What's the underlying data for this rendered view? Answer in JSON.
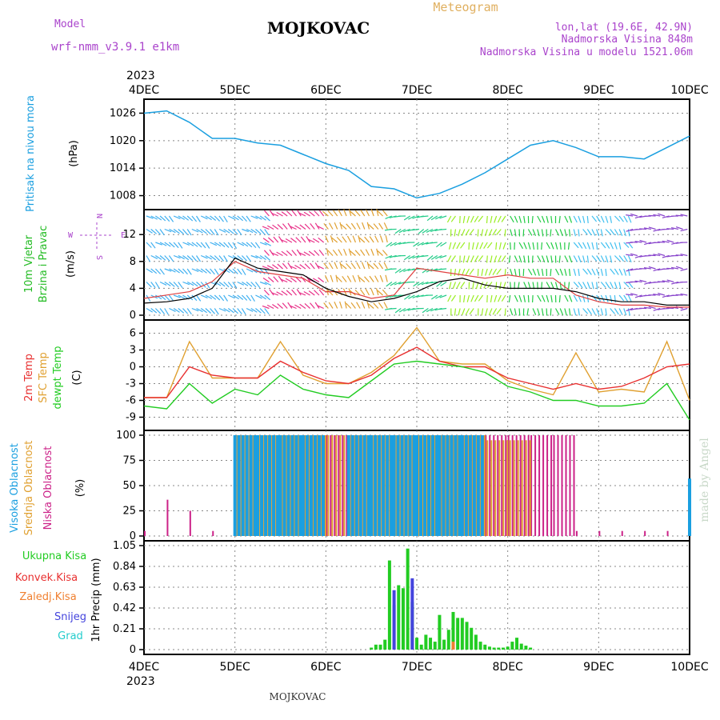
{
  "header": {
    "model_label": "Model",
    "model_name": "wrf-nmm_v3.9.1 e1km",
    "title": "MOJKOVAC",
    "subtitle": "Meteogram",
    "lonlat": "lon,lat (19.6E, 42.9N)",
    "elevation": "Nadmorska Visina 848m",
    "model_elevation": "Nadmorska Visina u modelu 1521.06m",
    "year_top": "2023",
    "year_bottom": "2023",
    "footer_station": "MOJKOVAC",
    "watermark": "made by Angel"
  },
  "colors": {
    "pressure": "#1a9fe0",
    "wind_label": "#22bb22",
    "wind_speed": "#000000",
    "wind_gust": "#e04040",
    "temp_2m": "#e83030",
    "temp_sfc": "#e0a030",
    "temp_dew": "#22cc22",
    "cloud_high": "#1a9fe0",
    "cloud_mid": "#e0a030",
    "cloud_low": "#cc2288",
    "precip_total": "#22cc22",
    "precip_conv": "#e83030",
    "precip_frz": "#f08030",
    "precip_snow": "#4444dd",
    "precip_hail": "#22cccc",
    "compass": "#aa44cc"
  },
  "chart_data": [
    {
      "type": "line",
      "panel": "pressure",
      "ylabel_main": "Pritisak na nivou mora",
      "ylabel_unit": "(hPa)",
      "x_categories": [
        "4DEC",
        "5DEC",
        "6DEC",
        "7DEC",
        "8DEC",
        "9DEC",
        "10DEC"
      ],
      "x_days": [
        0,
        0.25,
        0.5,
        0.75,
        1,
        1.25,
        1.5,
        1.75,
        2,
        2.25,
        2.5,
        2.75,
        3,
        3.25,
        3.5,
        3.75,
        4,
        4.25,
        4.5,
        4.75,
        5,
        5.25,
        5.5,
        5.75,
        6
      ],
      "ylim": [
        1006,
        1028
      ],
      "yticks": [
        1008,
        1014,
        1020,
        1026
      ],
      "series": [
        {
          "name": "Pritisak",
          "values": [
            1026,
            1026.5,
            1024,
            1020.5,
            1020.5,
            1019.5,
            1019,
            1017,
            1015,
            1013.5,
            1010,
            1009.5,
            1007.5,
            1008.5,
            1010.5,
            1013,
            1016,
            1019,
            1020,
            1018.5,
            1016.5,
            1016.5,
            1016,
            1018.5,
            1021
          ]
        }
      ]
    },
    {
      "type": "line",
      "panel": "wind",
      "ylabel_main_1": "10m Vjetar",
      "ylabel_main_2": "Brzina i Pravac",
      "ylabel_unit": "(m/s)",
      "compass_labels": [
        "N",
        "W",
        "E",
        "S"
      ],
      "ylim": [
        0,
        15
      ],
      "yticks": [
        0,
        4,
        8,
        12
      ],
      "series": [
        {
          "name": "Brzina",
          "values": [
            1.8,
            2,
            2.5,
            4,
            8.5,
            7,
            6.5,
            6,
            4,
            2.8,
            2,
            2.5,
            3.5,
            5,
            5.5,
            4.5,
            4,
            4,
            4,
            3.5,
            2.5,
            2,
            2,
            1.5,
            1.5
          ]
        },
        {
          "name": "Udar",
          "values": [
            2.5,
            3,
            3.5,
            5,
            8,
            6.5,
            6,
            5.5,
            3.5,
            3.5,
            2.5,
            3,
            7,
            6.5,
            6,
            5.5,
            6,
            5.5,
            5.5,
            3,
            2,
            1.5,
            1.5,
            1.2,
            1.2
          ]
        }
      ]
    },
    {
      "type": "line",
      "panel": "temperature",
      "ylabel_main_1": "2m Temp",
      "ylabel_main_2": "SFC Temp",
      "ylabel_main_3": "dewpt Temp",
      "ylabel_unit": "(C)",
      "ylim": [
        -10.5,
        7.5
      ],
      "yticks": [
        -9,
        -6,
        -3,
        0,
        3,
        6
      ],
      "series": [
        {
          "name": "2m Temp",
          "values": [
            -5.5,
            -5.5,
            0,
            -1.5,
            -2,
            -2,
            1,
            -1,
            -2.5,
            -3,
            -1.5,
            1.5,
            3.5,
            1,
            0,
            0,
            -2,
            -3,
            -4,
            -3,
            -4,
            -3.5,
            -2,
            0,
            0.5
          ]
        },
        {
          "name": "SFC Temp",
          "values": [
            -5.5,
            -5.5,
            4.5,
            -2,
            -2,
            -2,
            4.5,
            -1.5,
            -3,
            -3,
            -1,
            2,
            7,
            1,
            0.5,
            0.5,
            -2.5,
            -4,
            -5,
            2.5,
            -4.5,
            -4,
            -4.5,
            4.5,
            -6
          ]
        },
        {
          "name": "dewpt Temp",
          "values": [
            -7,
            -7.5,
            -3,
            -6.5,
            -4,
            -5,
            -1.5,
            -4,
            -5,
            -5.5,
            -2.5,
            0.5,
            1,
            0.5,
            0,
            -1,
            -3.5,
            -4.5,
            -6,
            -6,
            -7,
            -7,
            -6.5,
            -3,
            -9.5
          ]
        }
      ]
    },
    {
      "type": "bar",
      "panel": "clouds",
      "ylabel_main_1": "Visoka Oblacnost",
      "ylabel_main_2": "Srednja Oblacnost",
      "ylabel_main_3": "Niska Oblacnost",
      "ylabel_unit": "(%)",
      "ylim": [
        0,
        100
      ],
      "yticks": [
        0,
        25,
        50,
        75,
        100
      ],
      "series": [
        {
          "name": "Visoka",
          "values": [
            0,
            0,
            0,
            0,
            100,
            100,
            100,
            100,
            0,
            100,
            100,
            100,
            100,
            100,
            100,
            0,
            0,
            0,
            0,
            0,
            0,
            0,
            0,
            0,
            57
          ]
        },
        {
          "name": "Srednja",
          "values": [
            0,
            0,
            0,
            0,
            100,
            100,
            100,
            100,
            100,
            100,
            100,
            100,
            100,
            100,
            100,
            95,
            95,
            0,
            0,
            0,
            0,
            0,
            0,
            0,
            0
          ]
        },
        {
          "name": "Niska",
          "values": [
            5,
            36,
            25,
            5,
            100,
            100,
            100,
            100,
            100,
            100,
            100,
            100,
            100,
            100,
            100,
            100,
            100,
            100,
            100,
            5,
            5,
            5,
            5,
            5,
            10
          ]
        }
      ]
    },
    {
      "type": "bar",
      "panel": "precipitation",
      "ylabel_main": "1hr Precip (mm)",
      "legend": [
        "Ukupna Kisa",
        "Konvek.Kisa",
        "Zaledj.Kisa",
        "Snijeg",
        "Grad"
      ],
      "ylim": [
        0,
        1.05
      ],
      "yticks": [
        0,
        0.21,
        0.42,
        0.63,
        0.84,
        1.05
      ],
      "series": [
        {
          "name": "Ukupna Kisa",
          "x": [
            2.5,
            2.55,
            2.6,
            2.65,
            2.7,
            2.75,
            2.8,
            2.85,
            2.9,
            2.95,
            3.0,
            3.05,
            3.1,
            3.15,
            3.2,
            3.25,
            3.3,
            3.35,
            3.4,
            3.45,
            3.5,
            3.55,
            3.6,
            3.65,
            3.7,
            3.75,
            3.8,
            3.85,
            3.9,
            3.95,
            4.0,
            4.05,
            4.1,
            4.15,
            4.2,
            4.25
          ],
          "values": [
            0.02,
            0.05,
            0.05,
            0.1,
            0.9,
            0.45,
            0.65,
            0.62,
            1.02,
            0.48,
            0.12,
            0.05,
            0.15,
            0.12,
            0.08,
            0.35,
            0.1,
            0.2,
            0.38,
            0.32,
            0.32,
            0.28,
            0.22,
            0.15,
            0.08,
            0.05,
            0.03,
            0.02,
            0.02,
            0.02,
            0.03,
            0.08,
            0.12,
            0.06,
            0.04,
            0.02
          ]
        },
        {
          "name": "Konvek.Kisa",
          "values": []
        },
        {
          "name": "Zaledj.Kisa",
          "x": [
            3.4
          ],
          "values": [
            0.08
          ]
        },
        {
          "name": "Snijeg",
          "x": [
            2.75,
            2.95
          ],
          "values": [
            0.6,
            0.72
          ]
        },
        {
          "name": "Grad",
          "values": []
        }
      ]
    }
  ]
}
